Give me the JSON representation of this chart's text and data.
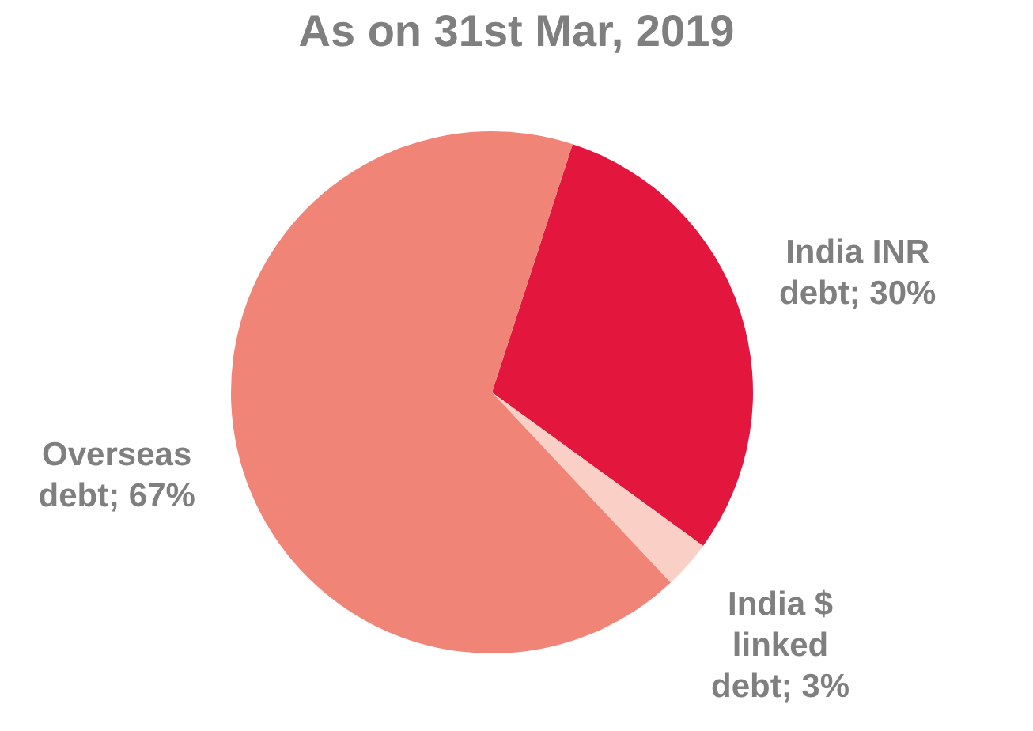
{
  "chart_data": {
    "type": "pie",
    "title": "As on 31st Mar, 2019",
    "categories": [
      "India INR debt",
      "India $ linked debt",
      "Overseas debt"
    ],
    "values": [
      30,
      3,
      67
    ],
    "value_labels": [
      "30%",
      "3%",
      "67%"
    ],
    "colors": [
      "#e3173e",
      "#f9cfc6",
      "#f08577"
    ],
    "legend": false
  }
}
